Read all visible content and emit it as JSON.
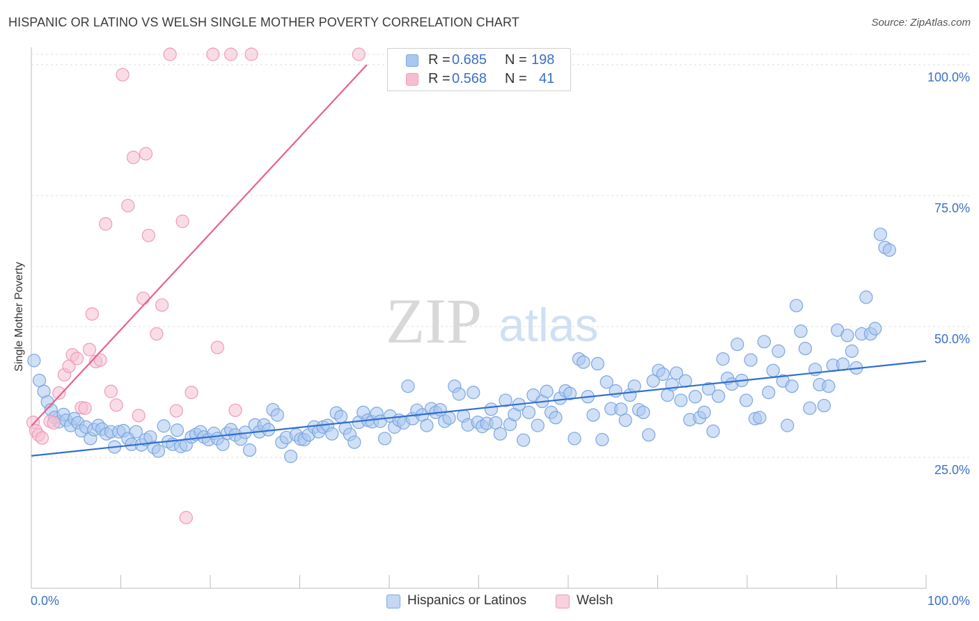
{
  "title": "HISPANIC OR LATINO VS WELSH SINGLE MOTHER POVERTY CORRELATION CHART",
  "source": "Source: ZipAtlas.com",
  "watermark": {
    "zip": "ZIP",
    "atlas": "atlas"
  },
  "legend": {
    "r_label": "R =",
    "n_label": "N =",
    "series": [
      {
        "r": "0.685",
        "n": "198"
      },
      {
        "r": "0.568",
        "n": "41"
      }
    ]
  },
  "chart_data": {
    "type": "scatter",
    "ylabel": "Single Mother Poverty",
    "x_ticks": [
      "0.0%",
      "100.0%"
    ],
    "y_ticks": [
      "25.0%",
      "50.0%",
      "75.0%",
      "100.0%"
    ],
    "xlim": [
      0,
      100
    ],
    "ylim": [
      0,
      102
    ],
    "grid": "horizontal dashed",
    "colors": {
      "blue_fill": "#aac7ee",
      "blue_stroke": "#7aa6e0",
      "blue_line": "#2f6fd0",
      "pink_fill": "#f6bfd1",
      "pink_stroke": "#ee9ab6",
      "pink_line": "#e8608e",
      "tick_label": "#3a6fc4"
    },
    "series": [
      {
        "name": "Hispanics or Latinos",
        "trend": {
          "x": [
            0,
            100
          ],
          "y": [
            25.3,
            43.4
          ]
        },
        "points": [
          [
            0.3,
            43.5
          ],
          [
            0.9,
            39.7
          ],
          [
            1.4,
            37.6
          ],
          [
            1.8,
            35.6
          ],
          [
            2.2,
            34.1
          ],
          [
            2.6,
            32.6
          ],
          [
            3.1,
            31.8
          ],
          [
            3.6,
            33.2
          ],
          [
            3.9,
            32.1
          ],
          [
            4.4,
            31.1
          ],
          [
            4.8,
            32.4
          ],
          [
            5.2,
            31.6
          ],
          [
            5.6,
            30.1
          ],
          [
            6.1,
            30.8
          ],
          [
            6.6,
            28.6
          ],
          [
            7.0,
            30.3
          ],
          [
            7.5,
            31.1
          ],
          [
            7.9,
            30.4
          ],
          [
            8.4,
            29.5
          ],
          [
            8.9,
            29.9
          ],
          [
            9.3,
            27.0
          ],
          [
            9.8,
            29.9
          ],
          [
            10.3,
            30.1
          ],
          [
            10.8,
            28.6
          ],
          [
            11.2,
            27.5
          ],
          [
            11.7,
            29.9
          ],
          [
            12.3,
            27.4
          ],
          [
            12.8,
            28.4
          ],
          [
            13.3,
            28.9
          ],
          [
            13.7,
            26.9
          ],
          [
            14.2,
            26.2
          ],
          [
            14.8,
            31.0
          ],
          [
            15.3,
            28.0
          ],
          [
            15.8,
            27.5
          ],
          [
            16.3,
            30.2
          ],
          [
            16.7,
            27.1
          ],
          [
            17.3,
            27.4
          ],
          [
            17.9,
            28.9
          ],
          [
            18.4,
            29.4
          ],
          [
            18.9,
            29.9
          ],
          [
            19.3,
            28.9
          ],
          [
            19.8,
            28.4
          ],
          [
            20.4,
            29.6
          ],
          [
            20.8,
            28.6
          ],
          [
            21.4,
            27.5
          ],
          [
            21.9,
            29.6
          ],
          [
            22.3,
            30.3
          ],
          [
            22.8,
            29.3
          ],
          [
            23.4,
            28.5
          ],
          [
            23.9,
            29.8
          ],
          [
            24.4,
            26.4
          ],
          [
            25.0,
            31.2
          ],
          [
            25.5,
            29.9
          ],
          [
            26.0,
            31.2
          ],
          [
            26.5,
            30.3
          ],
          [
            27.0,
            34.1
          ],
          [
            27.5,
            33.1
          ],
          [
            28.0,
            27.9
          ],
          [
            28.5,
            28.8
          ],
          [
            29.0,
            25.2
          ],
          [
            29.6,
            29.3
          ],
          [
            30.1,
            28.5
          ],
          [
            30.5,
            28.4
          ],
          [
            31.0,
            29.3
          ],
          [
            31.6,
            30.8
          ],
          [
            32.1,
            29.9
          ],
          [
            32.6,
            30.8
          ],
          [
            33.1,
            31.1
          ],
          [
            33.6,
            29.5
          ],
          [
            34.1,
            33.5
          ],
          [
            34.6,
            32.8
          ],
          [
            35.1,
            30.6
          ],
          [
            35.6,
            29.4
          ],
          [
            36.1,
            27.9
          ],
          [
            36.6,
            31.7
          ],
          [
            37.1,
            33.6
          ],
          [
            37.6,
            32.1
          ],
          [
            38.1,
            31.8
          ],
          [
            38.6,
            33.4
          ],
          [
            39.0,
            31.9
          ],
          [
            39.5,
            28.6
          ],
          [
            40.1,
            32.9
          ],
          [
            40.6,
            30.8
          ],
          [
            41.1,
            32.1
          ],
          [
            41.6,
            31.6
          ],
          [
            42.1,
            38.6
          ],
          [
            42.6,
            32.4
          ],
          [
            43.1,
            34.0
          ],
          [
            43.7,
            33.1
          ],
          [
            44.2,
            31.1
          ],
          [
            44.7,
            34.3
          ],
          [
            45.2,
            33.6
          ],
          [
            45.7,
            34.1
          ],
          [
            46.2,
            31.9
          ],
          [
            46.7,
            32.5
          ],
          [
            47.3,
            38.6
          ],
          [
            47.8,
            37.1
          ],
          [
            48.3,
            32.9
          ],
          [
            48.8,
            31.2
          ],
          [
            49.4,
            37.4
          ],
          [
            49.9,
            31.7
          ],
          [
            50.4,
            30.9
          ],
          [
            50.9,
            31.5
          ],
          [
            51.4,
            34.2
          ],
          [
            51.9,
            31.6
          ],
          [
            52.4,
            29.5
          ],
          [
            53.0,
            35.9
          ],
          [
            53.5,
            31.3
          ],
          [
            54.0,
            33.2
          ],
          [
            54.5,
            35.1
          ],
          [
            55.0,
            28.3
          ],
          [
            55.6,
            33.6
          ],
          [
            56.1,
            36.9
          ],
          [
            56.6,
            31.1
          ],
          [
            57.1,
            35.7
          ],
          [
            57.6,
            37.6
          ],
          [
            58.1,
            33.6
          ],
          [
            58.6,
            32.6
          ],
          [
            59.1,
            36.3
          ],
          [
            59.7,
            37.7
          ],
          [
            60.2,
            37.2
          ],
          [
            60.7,
            28.6
          ],
          [
            61.2,
            43.8
          ],
          [
            61.7,
            43.2
          ],
          [
            62.2,
            36.6
          ],
          [
            62.8,
            33.1
          ],
          [
            63.3,
            42.9
          ],
          [
            63.8,
            28.4
          ],
          [
            64.3,
            39.4
          ],
          [
            64.8,
            34.3
          ],
          [
            65.3,
            37.7
          ],
          [
            65.9,
            34.2
          ],
          [
            66.4,
            32.1
          ],
          [
            66.9,
            36.9
          ],
          [
            67.4,
            38.6
          ],
          [
            67.9,
            34.1
          ],
          [
            68.4,
            33.6
          ],
          [
            69.0,
            29.3
          ],
          [
            69.5,
            39.6
          ],
          [
            70.1,
            41.6
          ],
          [
            70.6,
            40.9
          ],
          [
            71.1,
            36.9
          ],
          [
            71.6,
            38.9
          ],
          [
            72.1,
            41.1
          ],
          [
            72.6,
            35.9
          ],
          [
            73.1,
            39.6
          ],
          [
            73.6,
            32.2
          ],
          [
            74.2,
            36.6
          ],
          [
            74.7,
            32.6
          ],
          [
            75.2,
            33.6
          ],
          [
            75.7,
            38.1
          ],
          [
            76.2,
            30.0
          ],
          [
            76.8,
            36.7
          ],
          [
            77.3,
            43.8
          ],
          [
            77.8,
            40.1
          ],
          [
            78.3,
            39.0
          ],
          [
            78.9,
            46.6
          ],
          [
            79.4,
            39.7
          ],
          [
            79.9,
            35.9
          ],
          [
            80.4,
            43.6
          ],
          [
            80.9,
            32.4
          ],
          [
            81.4,
            32.6
          ],
          [
            81.9,
            47.1
          ],
          [
            82.4,
            37.4
          ],
          [
            82.9,
            41.6
          ],
          [
            83.5,
            45.3
          ],
          [
            84.0,
            39.6
          ],
          [
            84.5,
            31.1
          ],
          [
            85.0,
            38.6
          ],
          [
            85.5,
            54.0
          ],
          [
            86.0,
            49.1
          ],
          [
            86.5,
            45.8
          ],
          [
            87.0,
            34.4
          ],
          [
            87.6,
            41.8
          ],
          [
            88.1,
            38.9
          ],
          [
            88.6,
            34.9
          ],
          [
            89.1,
            38.6
          ],
          [
            89.6,
            42.6
          ],
          [
            90.1,
            49.3
          ],
          [
            90.7,
            42.8
          ],
          [
            91.2,
            48.3
          ],
          [
            91.7,
            45.3
          ],
          [
            92.2,
            42.1
          ],
          [
            92.8,
            48.6
          ],
          [
            93.3,
            55.6
          ],
          [
            93.8,
            48.6
          ],
          [
            94.3,
            49.6
          ],
          [
            94.9,
            67.6
          ],
          [
            95.4,
            65.1
          ],
          [
            95.9,
            64.6
          ]
        ]
      },
      {
        "name": "Welsh",
        "trend": {
          "x": [
            0,
            37.5
          ],
          "y": [
            31.0,
            100.0
          ]
        },
        "points": [
          [
            0.2,
            31.7
          ],
          [
            0.5,
            30.1
          ],
          [
            0.8,
            29.3
          ],
          [
            1.2,
            28.7
          ],
          [
            2.1,
            31.9
          ],
          [
            2.5,
            31.6
          ],
          [
            3.1,
            37.3
          ],
          [
            3.7,
            40.8
          ],
          [
            4.2,
            42.4
          ],
          [
            4.6,
            44.6
          ],
          [
            5.1,
            43.9
          ],
          [
            5.6,
            34.5
          ],
          [
            6.0,
            34.4
          ],
          [
            6.5,
            45.6
          ],
          [
            6.8,
            52.4
          ],
          [
            7.2,
            43.3
          ],
          [
            7.7,
            43.6
          ],
          [
            8.3,
            69.6
          ],
          [
            8.9,
            37.6
          ],
          [
            9.5,
            35.0
          ],
          [
            10.2,
            98.1
          ],
          [
            10.8,
            73.1
          ],
          [
            11.4,
            82.3
          ],
          [
            12.0,
            33.0
          ],
          [
            12.5,
            55.4
          ],
          [
            12.8,
            83.0
          ],
          [
            13.1,
            67.4
          ],
          [
            14.0,
            48.6
          ],
          [
            14.6,
            54.1
          ],
          [
            15.5,
            102.0
          ],
          [
            16.2,
            33.9
          ],
          [
            16.9,
            70.1
          ],
          [
            17.3,
            13.5
          ],
          [
            17.9,
            37.4
          ],
          [
            20.3,
            102.0
          ],
          [
            20.8,
            46.0
          ],
          [
            22.3,
            102.0
          ],
          [
            22.8,
            34.0
          ],
          [
            24.6,
            102.0
          ],
          [
            36.6,
            102.0
          ]
        ]
      }
    ]
  },
  "bottom_legend": {
    "items": [
      "Hispanics or Latinos",
      "Welsh"
    ]
  }
}
